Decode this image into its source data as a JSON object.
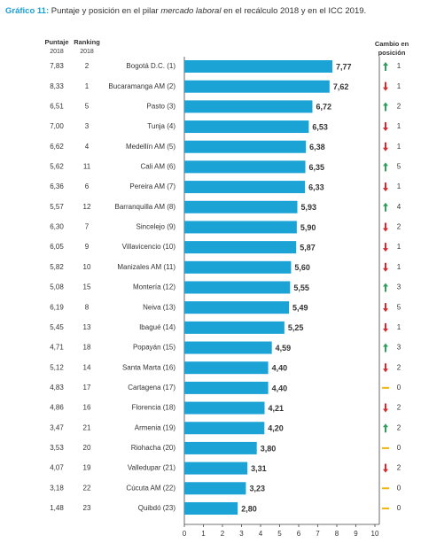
{
  "chart_data": {
    "type": "bar",
    "orientation": "horizontal",
    "title_label": "Gráfico 11:",
    "title_parts": [
      "Puntaje y posición en el pilar ",
      "mercado laboral",
      " en el recálculo 2018 y en el ICC 2019."
    ],
    "headers": {
      "score": [
        "Puntaje",
        "2018"
      ],
      "rank": [
        "Ranking",
        "2018"
      ],
      "change": [
        "Cambio en",
        "posición"
      ]
    },
    "categories": [
      "Bogotá D.C. (1)",
      "Bucaramanga AM (2)",
      "Pasto (3)",
      "Tunja (4)",
      "Medellín AM (5)",
      "Cali AM (6)",
      "Pereira AM (7)",
      "Barranquilla AM (8)",
      "Sincelejo (9)",
      "Villavicencio (10)",
      "Manizales AM (11)",
      "Montería (12)",
      "Neiva (13)",
      "Ibagué (14)",
      "Popayán (15)",
      "Santa Marta (16)",
      "Cartagena (17)",
      "Florencia (18)",
      "Armenia (19)",
      "Riohacha (20)",
      "Valledupar (21)",
      "Cúcuta AM (22)",
      "Quibdó (23)"
    ],
    "values": [
      7.77,
      7.62,
      6.72,
      6.53,
      6.38,
      6.35,
      6.33,
      5.93,
      5.9,
      5.87,
      5.6,
      5.55,
      5.49,
      5.25,
      4.59,
      4.4,
      4.4,
      4.21,
      4.2,
      3.8,
      3.31,
      3.23,
      2.8
    ],
    "value_labels": [
      "7,77",
      "7,62",
      "6,72",
      "6,53",
      "6,38",
      "6,35",
      "6,33",
      "5,93",
      "5,90",
      "5,87",
      "5,60",
      "5,55",
      "5,49",
      "5,25",
      "4,59",
      "4,40",
      "4,40",
      "4,21",
      "4,20",
      "3,80",
      "3,31",
      "3,23",
      "2,80"
    ],
    "score_2018": [
      "7,83",
      "8,33",
      "6,51",
      "7,00",
      "6,62",
      "5,62",
      "6,36",
      "5,57",
      "6,30",
      "6,05",
      "5,82",
      "5,08",
      "6,19",
      "5,45",
      "4,71",
      "5,12",
      "4,83",
      "4,86",
      "3,47",
      "3,53",
      "4,07",
      "3,18",
      "1,48"
    ],
    "rank_2018": [
      2,
      1,
      5,
      3,
      4,
      11,
      6,
      12,
      7,
      9,
      10,
      15,
      8,
      13,
      18,
      14,
      17,
      16,
      21,
      20,
      19,
      22,
      23
    ],
    "change": [
      1,
      1,
      2,
      1,
      1,
      5,
      1,
      4,
      2,
      1,
      1,
      3,
      5,
      1,
      3,
      2,
      0,
      2,
      2,
      0,
      2,
      0,
      0
    ],
    "change_direction": [
      "up",
      "down",
      "up",
      "down",
      "down",
      "up",
      "down",
      "up",
      "down",
      "down",
      "down",
      "up",
      "down",
      "down",
      "up",
      "down",
      "same",
      "down",
      "up",
      "same",
      "down",
      "same",
      "same"
    ],
    "direction_colors": {
      "up": "#2e9e5b",
      "down": "#d9272e",
      "same": "#f2b705"
    },
    "color": "#1ba3d6",
    "xlim": [
      0,
      10
    ],
    "xticks": [
      0,
      1,
      2,
      3,
      4,
      5,
      6,
      7,
      8,
      9,
      10
    ]
  }
}
